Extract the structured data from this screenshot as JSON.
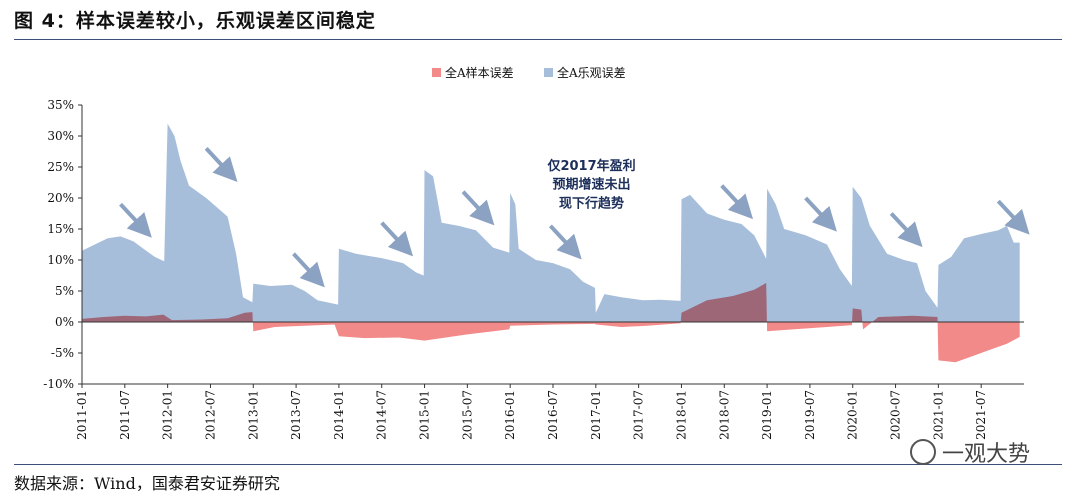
{
  "title": "图 4：样本误差较小，乐观误差区间稳定",
  "source": "数据来源：Wind，国泰君安证券研究",
  "watermark": "一观大势",
  "chart_data": {
    "type": "area",
    "title": "",
    "xlabel": "",
    "ylabel": "",
    "ylim": [
      -10,
      35
    ],
    "yticks": [
      "35%",
      "30%",
      "25%",
      "20%",
      "15%",
      "10%",
      "5%",
      "0%",
      "-5%",
      "-10%"
    ],
    "ytick_values": [
      35,
      30,
      25,
      20,
      15,
      10,
      5,
      0,
      -5,
      -10
    ],
    "xticks": [
      "2011-01",
      "2011-07",
      "2012-01",
      "2012-07",
      "2013-01",
      "2013-07",
      "2014-01",
      "2014-07",
      "2015-01",
      "2015-07",
      "2016-01",
      "2016-07",
      "2017-01",
      "2017-07",
      "2018-01",
      "2018-07",
      "2019-01",
      "2019-07",
      "2020-01",
      "2020-07",
      "2021-01",
      "2021-07"
    ],
    "legend_position": "top-center",
    "colors": {
      "sample": "#f28a8a",
      "optimistic": "#a7bedb",
      "arrow": "#8ca2c2"
    },
    "series": [
      {
        "name": "全A样本误差",
        "points": [
          [
            2011.0,
            0.5
          ],
          [
            2011.25,
            0.8
          ],
          [
            2011.5,
            1.0
          ],
          [
            2011.75,
            0.9
          ],
          [
            2011.95,
            1.2
          ],
          [
            2012.05,
            0.3
          ],
          [
            2012.4,
            0.4
          ],
          [
            2012.7,
            0.6
          ],
          [
            2012.9,
            1.5
          ],
          [
            2012.99,
            1.6
          ],
          [
            2013.0,
            -1.5
          ],
          [
            2013.25,
            -0.8
          ],
          [
            2013.6,
            -0.6
          ],
          [
            2013.95,
            -0.4
          ],
          [
            2014.0,
            -2.3
          ],
          [
            2014.3,
            -2.6
          ],
          [
            2014.7,
            -2.5
          ],
          [
            2015.0,
            -3.0
          ],
          [
            2015.5,
            -2.0
          ],
          [
            2015.99,
            -1.2
          ],
          [
            2016.0,
            -0.6
          ],
          [
            2016.5,
            -0.4
          ],
          [
            2016.99,
            -0.3
          ],
          [
            2017.0,
            -0.4
          ],
          [
            2017.3,
            -0.8
          ],
          [
            2017.6,
            -0.6
          ],
          [
            2017.99,
            -0.2
          ],
          [
            2018.0,
            1.5
          ],
          [
            2018.3,
            3.5
          ],
          [
            2018.6,
            4.2
          ],
          [
            2018.85,
            5.2
          ],
          [
            2018.99,
            6.3
          ],
          [
            2019.0,
            -1.5
          ],
          [
            2019.3,
            -1.2
          ],
          [
            2019.7,
            -0.8
          ],
          [
            2019.99,
            -0.5
          ],
          [
            2020.0,
            2.2
          ],
          [
            2020.1,
            2.0
          ],
          [
            2020.12,
            -1.2
          ],
          [
            2020.3,
            0.8
          ],
          [
            2020.7,
            1.0
          ],
          [
            2020.99,
            0.8
          ],
          [
            2021.0,
            -6.2
          ],
          [
            2021.2,
            -6.5
          ],
          [
            2021.4,
            -5.5
          ],
          [
            2021.6,
            -4.5
          ],
          [
            2021.8,
            -3.5
          ],
          [
            2021.95,
            -2.4
          ]
        ]
      },
      {
        "name": "全A乐观误差",
        "points": [
          [
            2011.0,
            11.5
          ],
          [
            2011.15,
            12.5
          ],
          [
            2011.3,
            13.5
          ],
          [
            2011.45,
            13.8
          ],
          [
            2011.6,
            13.0
          ],
          [
            2011.75,
            11.5
          ],
          [
            2011.85,
            10.5
          ],
          [
            2011.96,
            9.8
          ],
          [
            2012.0,
            32.0
          ],
          [
            2012.08,
            30.0
          ],
          [
            2012.15,
            26.0
          ],
          [
            2012.25,
            22.0
          ],
          [
            2012.45,
            20.0
          ],
          [
            2012.7,
            17.0
          ],
          [
            2012.8,
            11.0
          ],
          [
            2012.88,
            4.0
          ],
          [
            2012.99,
            3.2
          ],
          [
            2013.0,
            6.2
          ],
          [
            2013.2,
            5.8
          ],
          [
            2013.45,
            6.0
          ],
          [
            2013.6,
            5.0
          ],
          [
            2013.75,
            3.5
          ],
          [
            2013.99,
            2.8
          ],
          [
            2014.0,
            11.8
          ],
          [
            2014.2,
            11.0
          ],
          [
            2014.5,
            10.3
          ],
          [
            2014.75,
            9.5
          ],
          [
            2014.9,
            8.0
          ],
          [
            2014.99,
            7.5
          ],
          [
            2015.0,
            24.5
          ],
          [
            2015.1,
            23.5
          ],
          [
            2015.2,
            16.0
          ],
          [
            2015.4,
            15.5
          ],
          [
            2015.6,
            14.8
          ],
          [
            2015.8,
            12.0
          ],
          [
            2015.99,
            11.2
          ],
          [
            2016.0,
            20.8
          ],
          [
            2016.06,
            19.0
          ],
          [
            2016.1,
            11.8
          ],
          [
            2016.3,
            10.0
          ],
          [
            2016.5,
            9.5
          ],
          [
            2016.7,
            8.5
          ],
          [
            2016.85,
            6.5
          ],
          [
            2016.99,
            5.5
          ],
          [
            2017.0,
            1.5
          ],
          [
            2017.1,
            4.5
          ],
          [
            2017.3,
            4.0
          ],
          [
            2017.55,
            3.5
          ],
          [
            2017.75,
            3.6
          ],
          [
            2017.99,
            3.4
          ],
          [
            2018.0,
            19.8
          ],
          [
            2018.1,
            20.5
          ],
          [
            2018.3,
            17.5
          ],
          [
            2018.5,
            16.5
          ],
          [
            2018.7,
            15.8
          ],
          [
            2018.85,
            14.0
          ],
          [
            2018.99,
            10.2
          ],
          [
            2019.0,
            21.5
          ],
          [
            2019.1,
            19.0
          ],
          [
            2019.2,
            15.0
          ],
          [
            2019.45,
            14.0
          ],
          [
            2019.7,
            12.5
          ],
          [
            2019.85,
            8.5
          ],
          [
            2019.99,
            5.8
          ],
          [
            2020.0,
            21.8
          ],
          [
            2020.1,
            20.0
          ],
          [
            2020.2,
            15.5
          ],
          [
            2020.4,
            11.0
          ],
          [
            2020.6,
            10.0
          ],
          [
            2020.75,
            9.5
          ],
          [
            2020.85,
            5.0
          ],
          [
            2020.99,
            2.3
          ],
          [
            2021.0,
            9.2
          ],
          [
            2021.15,
            10.5
          ],
          [
            2021.3,
            13.5
          ],
          [
            2021.5,
            14.2
          ],
          [
            2021.7,
            14.8
          ],
          [
            2021.8,
            15.5
          ],
          [
            2021.88,
            12.8
          ],
          [
            2021.95,
            12.8
          ]
        ]
      }
    ],
    "annotations": [
      {
        "text": "仅2017年盈利",
        "x": 2016.95,
        "y": 24.5
      },
      {
        "text": "预期增速未出",
        "x": 2016.95,
        "y": 21.5
      },
      {
        "text": "现下行趋势",
        "x": 2016.95,
        "y": 18.5
      }
    ],
    "arrows": [
      {
        "x1": 2011.45,
        "y1": 19.0,
        "x2": 2011.72,
        "y2": 15.0
      },
      {
        "x1": 2012.45,
        "y1": 28.0,
        "x2": 2012.72,
        "y2": 24.0
      },
      {
        "x1": 2013.47,
        "y1": 11.0,
        "x2": 2013.74,
        "y2": 7.0
      },
      {
        "x1": 2014.5,
        "y1": 16.0,
        "x2": 2014.77,
        "y2": 12.0
      },
      {
        "x1": 2015.45,
        "y1": 21.0,
        "x2": 2015.72,
        "y2": 17.0
      },
      {
        "x1": 2016.47,
        "y1": 15.5,
        "x2": 2016.74,
        "y2": 11.5
      },
      {
        "x1": 2018.47,
        "y1": 22.0,
        "x2": 2018.74,
        "y2": 18.0
      },
      {
        "x1": 2019.45,
        "y1": 20.0,
        "x2": 2019.72,
        "y2": 16.0
      },
      {
        "x1": 2020.45,
        "y1": 17.5,
        "x2": 2020.72,
        "y2": 13.5
      },
      {
        "x1": 2021.7,
        "y1": 19.5,
        "x2": 2021.97,
        "y2": 15.5
      }
    ]
  }
}
